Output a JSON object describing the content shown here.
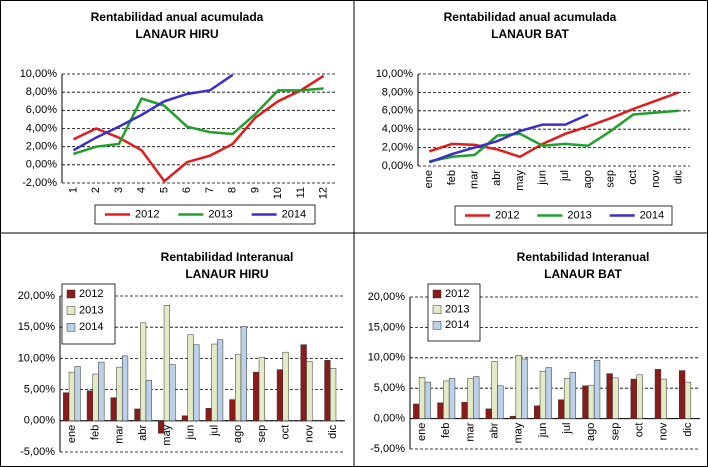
{
  "chart_data": [
    {
      "type": "line",
      "title": "Rentabilidad anual acumulada",
      "subtitle": "LANAUR HIRU",
      "categories": [
        "1",
        "2",
        "3",
        "4",
        "5",
        "6",
        "7",
        "8",
        "9",
        "10",
        "11",
        "12"
      ],
      "series": [
        {
          "name": "2012",
          "color": "#e41a1c",
          "values": [
            2.8,
            4.0,
            3.0,
            1.6,
            -1.8,
            0.3,
            1.0,
            2.3,
            5.2,
            7.0,
            8.2,
            9.8
          ]
        },
        {
          "name": "2013",
          "color": "#1fa02a",
          "values": [
            1.2,
            2.0,
            2.3,
            7.3,
            6.5,
            4.2,
            3.6,
            3.4,
            5.6,
            8.2,
            8.2,
            8.4
          ]
        },
        {
          "name": "2014",
          "color": "#3a2fcc",
          "values": [
            1.6,
            3.0,
            4.2,
            5.5,
            7.0,
            7.8,
            8.2,
            9.9,
            null,
            null,
            null,
            null
          ]
        }
      ],
      "ylim": [
        -2,
        10
      ],
      "yticks": [
        {
          "value": -2,
          "label": "-2,00%"
        },
        {
          "value": 0,
          "label": "0,00%"
        },
        {
          "value": 2,
          "label": "2,00%"
        },
        {
          "value": 4,
          "label": "4,00%"
        },
        {
          "value": 6,
          "label": "6,00%"
        },
        {
          "value": 8,
          "label": "8,00%"
        },
        {
          "value": 10,
          "label": "10,00%"
        }
      ],
      "grid": true,
      "legend": "bottom"
    },
    {
      "type": "line",
      "title": "Rentabilidad anual acumulada",
      "subtitle": "LANAUR BAT",
      "categories": [
        "ene",
        "feb",
        "mar",
        "abr",
        "may",
        "jun",
        "jul",
        "ago",
        "sep",
        "oct",
        "nov",
        "dic"
      ],
      "series": [
        {
          "name": "2012",
          "color": "#e41a1c",
          "values": [
            1.6,
            2.4,
            2.3,
            1.8,
            1.0,
            2.4,
            3.5,
            4.3,
            5.2,
            6.2,
            7.1,
            8.0
          ]
        },
        {
          "name": "2013",
          "color": "#1fa02a",
          "values": [
            0.5,
            1.0,
            1.2,
            3.3,
            3.5,
            2.2,
            2.4,
            2.2,
            3.8,
            5.6,
            5.8,
            6.0
          ]
        },
        {
          "name": "2014",
          "color": "#3a2fcc",
          "values": [
            0.4,
            1.3,
            2.0,
            2.7,
            3.8,
            4.5,
            4.5,
            5.6,
            null,
            null,
            null,
            null
          ]
        }
      ],
      "ylim": [
        0,
        10
      ],
      "yticks": [
        {
          "value": 0,
          "label": "0,00%"
        },
        {
          "value": 2,
          "label": "2,00%"
        },
        {
          "value": 4,
          "label": "4,00%"
        },
        {
          "value": 6,
          "label": "6,00%"
        },
        {
          "value": 8,
          "label": "8,00%"
        },
        {
          "value": 10,
          "label": "10,00%"
        }
      ],
      "grid": true,
      "legend": "bottom"
    },
    {
      "type": "bar",
      "title": "Rentabilidad Interanual",
      "subtitle": "LANAUR HIRU",
      "categories": [
        "ene",
        "feb",
        "mar",
        "abr",
        "may",
        "jun",
        "jul",
        "ago",
        "sep",
        "oct",
        "nov",
        "dic"
      ],
      "series": [
        {
          "name": "2012",
          "color": "#8b1a1a",
          "values": [
            4.5,
            4.8,
            3.7,
            1.9,
            -2.0,
            0.8,
            2.0,
            3.4,
            7.8,
            8.2,
            12.2,
            9.7
          ]
        },
        {
          "name": "2013",
          "color": "#e3ebc6",
          "values": [
            7.8,
            7.5,
            8.6,
            15.7,
            18.5,
            13.8,
            12.3,
            10.6,
            10.2,
            11.0,
            9.5,
            8.4
          ]
        },
        {
          "name": "2014",
          "color": "#bcd0e8",
          "values": [
            8.7,
            9.4,
            10.4,
            6.5,
            9.0,
            12.2,
            13.0,
            15.1,
            null,
            null,
            null,
            null
          ]
        }
      ],
      "ylim": [
        -5,
        20
      ],
      "yticks": [
        {
          "value": -5,
          "label": "-5,00%"
        },
        {
          "value": 0,
          "label": "0,00%"
        },
        {
          "value": 5,
          "label": "5,00%"
        },
        {
          "value": 10,
          "label": "10,00%"
        },
        {
          "value": 15,
          "label": "15,00%"
        },
        {
          "value": 20,
          "label": "20,00%"
        }
      ],
      "grid": true,
      "legend": "top-left"
    },
    {
      "type": "bar",
      "title": "Rentabilidad Interanual",
      "subtitle": "LANAUR BAT",
      "categories": [
        "ene",
        "feb",
        "mar",
        "abr",
        "may",
        "jun",
        "jul",
        "ago",
        "sep",
        "oct",
        "nov",
        "dic"
      ],
      "series": [
        {
          "name": "2012",
          "color": "#8b1a1a",
          "values": [
            2.4,
            2.6,
            2.7,
            1.6,
            0.4,
            2.1,
            3.1,
            5.4,
            7.4,
            6.5,
            8.1,
            7.9
          ]
        },
        {
          "name": "2013",
          "color": "#e3ebc6",
          "values": [
            6.8,
            6.2,
            6.6,
            9.4,
            10.4,
            7.8,
            6.6,
            5.5,
            6.7,
            7.2,
            6.5,
            6.0
          ]
        },
        {
          "name": "2014",
          "color": "#bcd0e8",
          "values": [
            6.0,
            6.6,
            6.9,
            5.4,
            9.8,
            8.4,
            7.6,
            9.6,
            null,
            null,
            null,
            null
          ]
        }
      ],
      "ylim": [
        -5,
        20
      ],
      "yticks": [
        {
          "value": -5,
          "label": "-5,00%"
        },
        {
          "value": 0,
          "label": "0,00%"
        },
        {
          "value": 5,
          "label": "5,00%"
        },
        {
          "value": 10,
          "label": "10,00%"
        },
        {
          "value": 15,
          "label": "15,00%"
        },
        {
          "value": 20,
          "label": "20,00%"
        }
      ],
      "grid": true,
      "legend": "top-left"
    }
  ]
}
